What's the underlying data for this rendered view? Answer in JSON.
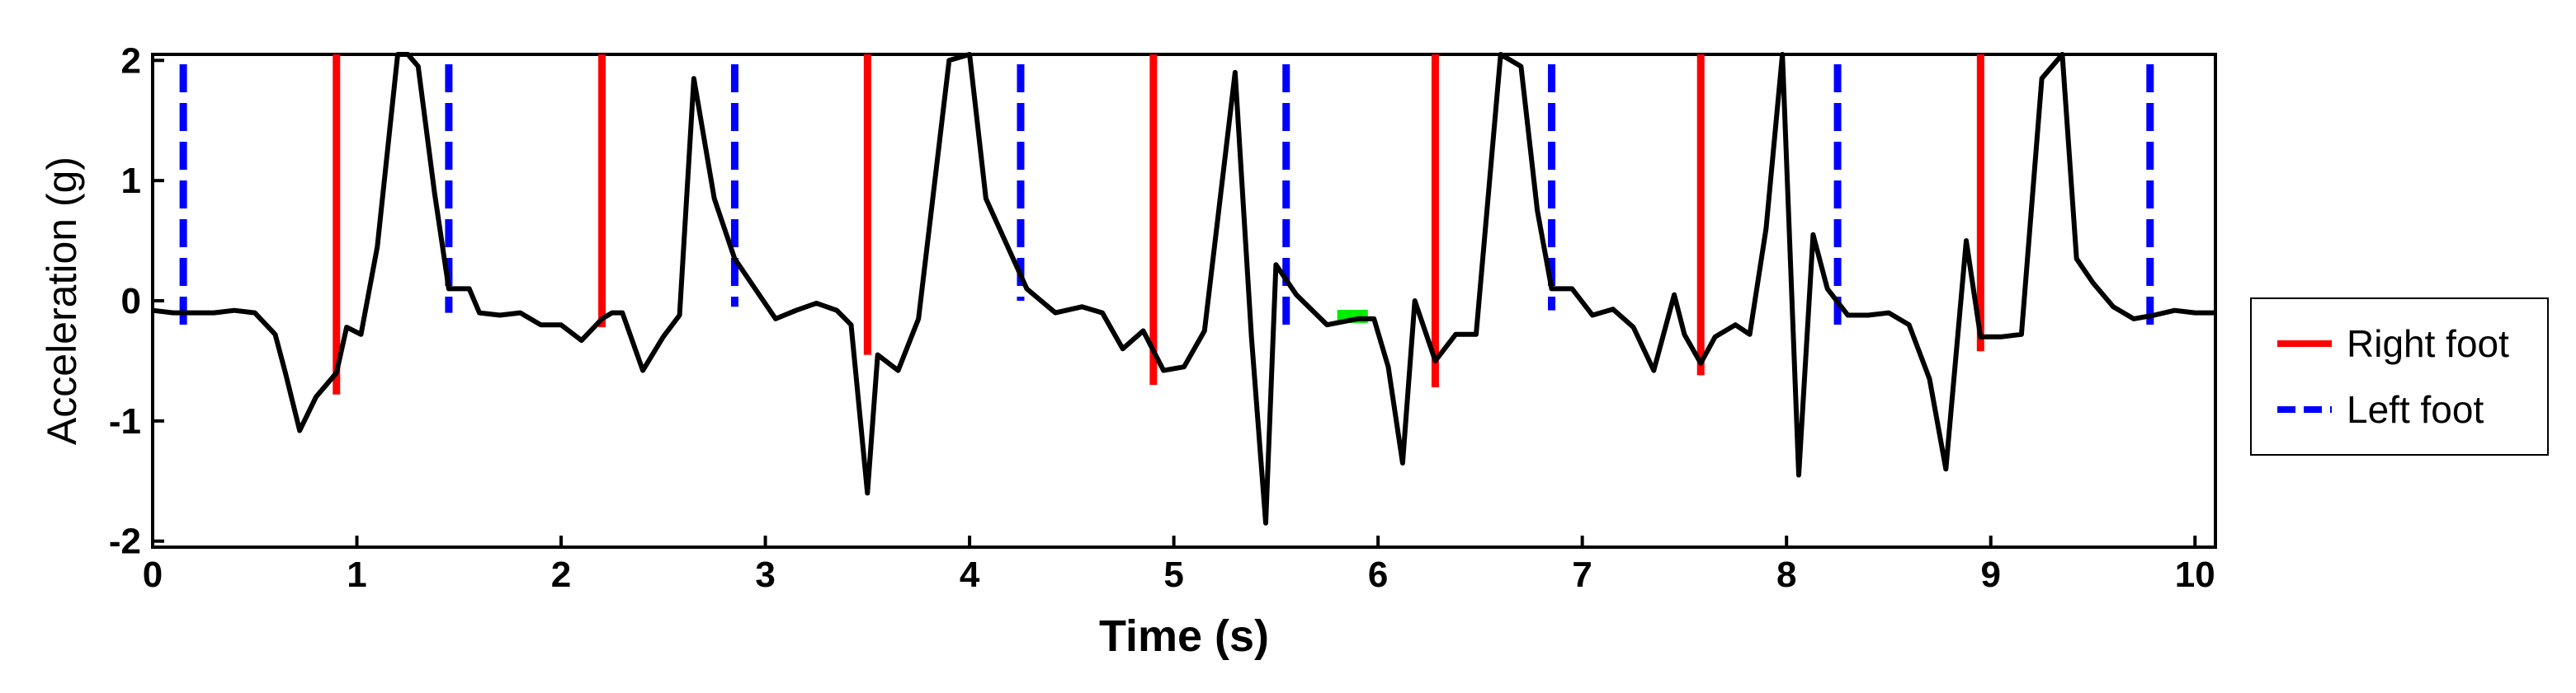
{
  "chart_data": {
    "type": "line",
    "title": "",
    "xlabel": "Time (s)",
    "ylabel": "Acceleration (g)",
    "xlim": [
      0,
      10.1
    ],
    "ylim": [
      -2.05,
      2.05
    ],
    "xticks": [
      0,
      1,
      2,
      3,
      4,
      5,
      6,
      7,
      8,
      9,
      10
    ],
    "yticks": [
      -2,
      -1,
      0,
      1,
      2
    ],
    "grid": false,
    "legend_position": "right",
    "colors": {
      "signal": "#000000",
      "right_foot": "#ff0000",
      "left_foot": "#0000ff",
      "marker": "#00ee00"
    },
    "series": [
      {
        "x": [
          0.0,
          0.1,
          0.2,
          0.3,
          0.4,
          0.5,
          0.6,
          0.65,
          0.72,
          0.8,
          0.9,
          0.95,
          1.02,
          1.1,
          1.2,
          1.25,
          1.3,
          1.38,
          1.45,
          1.5,
          1.55,
          1.6,
          1.7,
          1.8,
          1.9,
          2.0,
          2.1,
          2.2,
          2.25,
          2.3,
          2.4,
          2.5,
          2.58,
          2.65,
          2.75,
          2.85,
          2.95,
          3.05,
          3.15,
          3.25,
          3.35,
          3.42,
          3.5,
          3.55,
          3.65,
          3.75,
          3.9,
          4.0,
          4.08,
          4.2,
          4.28,
          4.35,
          4.42,
          4.55,
          4.65,
          4.75,
          4.85,
          4.95,
          5.05,
          5.15,
          5.3,
          5.38,
          5.45,
          5.5,
          5.6,
          5.75,
          5.9,
          5.98,
          6.05,
          6.12,
          6.18,
          6.28,
          6.38,
          6.48,
          6.6,
          6.7,
          6.78,
          6.85,
          6.95,
          7.05,
          7.15,
          7.25,
          7.35,
          7.45,
          7.5,
          7.58,
          7.65,
          7.75,
          7.82,
          7.9,
          7.98,
          8.06,
          8.13,
          8.2,
          8.3,
          8.4,
          8.5,
          8.6,
          8.7,
          8.78,
          8.88,
          8.95,
          9.05,
          9.15,
          9.25,
          9.35,
          9.42,
          9.5,
          9.6,
          9.7,
          9.8,
          9.9,
          10.0,
          10.1
        ],
        "y": [
          -0.08,
          -0.1,
          -0.1,
          -0.1,
          -0.08,
          -0.1,
          -0.28,
          -0.6,
          -1.08,
          -0.8,
          -0.6,
          -0.22,
          -0.28,
          0.45,
          2.05,
          2.1,
          1.95,
          0.9,
          0.1,
          0.1,
          0.1,
          -0.1,
          -0.12,
          -0.1,
          -0.2,
          -0.2,
          -0.33,
          -0.15,
          -0.1,
          -0.1,
          -0.58,
          -0.3,
          -0.12,
          1.85,
          0.85,
          0.35,
          0.1,
          -0.15,
          -0.08,
          -0.02,
          -0.08,
          -0.2,
          -1.6,
          -0.45,
          -0.58,
          -0.15,
          2.0,
          2.05,
          0.85,
          0.4,
          0.1,
          0.0,
          -0.1,
          -0.05,
          -0.1,
          -0.4,
          -0.25,
          -0.58,
          -0.55,
          -0.25,
          1.9,
          -0.3,
          -1.85,
          0.3,
          0.05,
          -0.2,
          -0.15,
          -0.15,
          -0.55,
          -1.35,
          0.0,
          -0.5,
          -0.28,
          -0.28,
          2.05,
          1.95,
          0.75,
          0.1,
          0.1,
          -0.12,
          -0.07,
          -0.22,
          -0.58,
          0.05,
          -0.28,
          -0.52,
          -0.3,
          -0.2,
          -0.28,
          0.6,
          2.1,
          -1.45,
          0.55,
          0.1,
          -0.12,
          -0.12,
          -0.1,
          -0.2,
          -0.65,
          -1.4,
          0.5,
          -0.3,
          -0.3,
          -0.28,
          1.85,
          2.1,
          0.35,
          0.15,
          -0.05,
          -0.15,
          -0.12,
          -0.08,
          -0.1,
          -0.1
        ]
      }
    ],
    "right_foot_events": [
      {
        "x": 0.9,
        "y_top": 2.05,
        "y_bottom": -0.78
      },
      {
        "x": 2.2,
        "y_top": 2.05,
        "y_bottom": -0.22
      },
      {
        "x": 3.5,
        "y_top": 2.05,
        "y_bottom": -0.45
      },
      {
        "x": 4.9,
        "y_top": 2.05,
        "y_bottom": -0.7
      },
      {
        "x": 6.28,
        "y_top": 2.05,
        "y_bottom": -0.72
      },
      {
        "x": 7.58,
        "y_top": 2.05,
        "y_bottom": -0.62
      },
      {
        "x": 8.95,
        "y_top": 2.05,
        "y_bottom": -0.42
      }
    ],
    "left_foot_events": [
      {
        "x": 0.15,
        "y_top": 2.05,
        "y_bottom": -0.2
      },
      {
        "x": 1.45,
        "y_top": 2.05,
        "y_bottom": -0.1
      },
      {
        "x": 2.85,
        "y_top": 2.05,
        "y_bottom": -0.05
      },
      {
        "x": 4.25,
        "y_top": 2.05,
        "y_bottom": 0.0
      },
      {
        "x": 5.55,
        "y_top": 2.05,
        "y_bottom": -0.22
      },
      {
        "x": 6.85,
        "y_top": 2.05,
        "y_bottom": -0.08
      },
      {
        "x": 8.25,
        "y_top": 2.05,
        "y_bottom": -0.25
      },
      {
        "x": 9.78,
        "y_top": 2.05,
        "y_bottom": -0.25
      }
    ],
    "markers": [
      {
        "x_start": 5.8,
        "x_end": 5.95,
        "y": -0.13
      }
    ],
    "legend": [
      {
        "label": "Right foot",
        "style": "solid",
        "color": "#ff0000"
      },
      {
        "label": "Left foot",
        "style": "dashed",
        "color": "#0000ff"
      }
    ]
  }
}
